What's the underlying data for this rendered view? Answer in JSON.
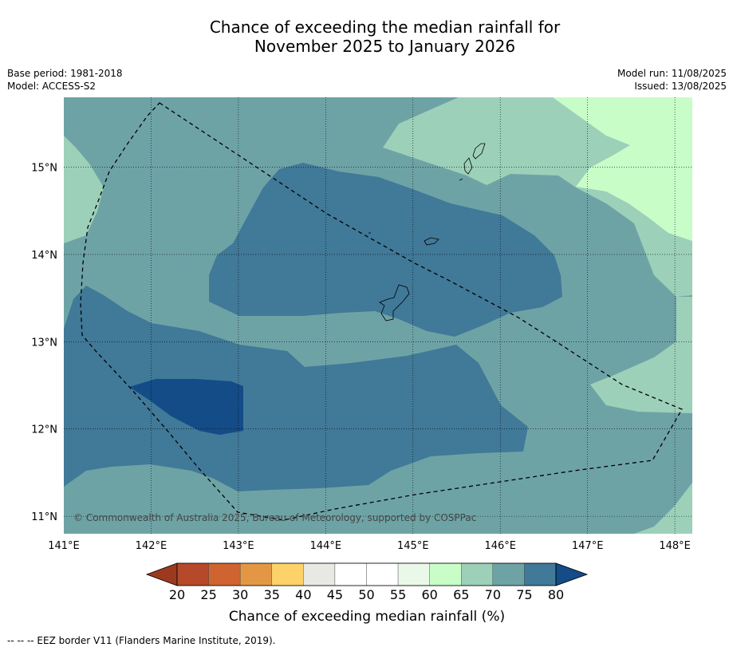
{
  "title": {
    "line1": "Chance of exceeding the median rainfall for",
    "line2": "November 2025 to January 2026"
  },
  "meta": {
    "base_period": "Base period: 1981-2018",
    "model": "Model: ACCESS-S2",
    "model_run": "Model run: 11/08/2025",
    "issued": "Issued: 13/08/2025"
  },
  "copyright": "© Commonwealth of Australia 2025, Bureau of Meteorology, supported by COSPPac",
  "axes": {
    "lon_labels": [
      "141°E",
      "142°E",
      "143°E",
      "144°E",
      "145°E",
      "146°E",
      "147°E",
      "148°E"
    ],
    "lat_labels": [
      "15°N",
      "14°N",
      "13°N",
      "12°N",
      "11°N"
    ],
    "lon_range": [
      141.0,
      148.2
    ],
    "lat_range": [
      10.8,
      15.8
    ]
  },
  "colorbar": {
    "title": "Chance of exceeding median rainfall (%)",
    "ticks": [
      "20",
      "25",
      "30",
      "35",
      "40",
      "45",
      "50",
      "55",
      "60",
      "65",
      "70",
      "75",
      "80"
    ],
    "colors": {
      "lt20": "#9c3a1f",
      "20-25": "#b5492a",
      "25-30": "#cf6431",
      "30-35": "#e39745",
      "35-40": "#fdd268",
      "40-45": "#e9e9e4",
      "45-50": "#ffffff",
      "50-55": "#ffffff",
      "55-60": "#eaf8e9",
      "60-65": "#c8fdc8",
      "65-70": "#9dd0b9",
      "70-75": "#6ea3a6",
      "75-80": "#417998",
      "gt80": "#134c87"
    }
  },
  "footnote": "--  --  -- EEZ border V11 (Flanders Marine Institute, 2019)."
}
